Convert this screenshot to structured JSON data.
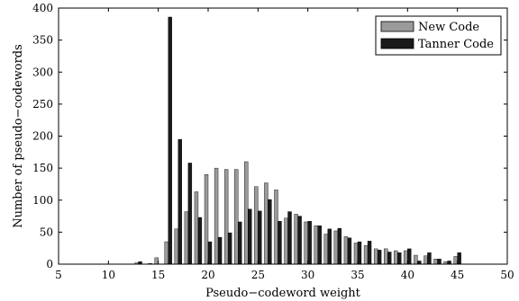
{
  "chart_data": {
    "type": "bar",
    "xlabel": "Pseudo−codeword weight",
    "ylabel": "Number of pseudo−codewords",
    "xlim": [
      5,
      50
    ],
    "ylim": [
      0,
      400
    ],
    "xticks": [
      "5",
      "10",
      "15",
      "20",
      "25",
      "30",
      "35",
      "40",
      "45",
      "50"
    ],
    "yticks": [
      "0",
      "50",
      "100",
      "150",
      "200",
      "250",
      "300",
      "350",
      "400"
    ],
    "grid": false,
    "legend_position": "top-right",
    "x": [
      10,
      11,
      12,
      13,
      14,
      15,
      16,
      17,
      18,
      19,
      20,
      21,
      22,
      23,
      24,
      25,
      26,
      27,
      28,
      29,
      30,
      31,
      32,
      33,
      34,
      35,
      36,
      37,
      38,
      39,
      40,
      41,
      42,
      43,
      44,
      45
    ],
    "series": [
      {
        "name": "New Code",
        "color": "#9a9a9a",
        "values": [
          0,
          0,
          0,
          2,
          0,
          10,
          35,
          55,
          82,
          113,
          140,
          150,
          148,
          148,
          160,
          121,
          127,
          116,
          72,
          78,
          66,
          60,
          47,
          52,
          43,
          33,
          29,
          24,
          24,
          21,
          21,
          14,
          13,
          8,
          4,
          12
        ]
      },
      {
        "name": "Tanner Code",
        "color": "#1a1a1a",
        "values": [
          0,
          0,
          0,
          4,
          1,
          0,
          386,
          195,
          158,
          73,
          35,
          42,
          49,
          66,
          86,
          83,
          101,
          67,
          82,
          75,
          67,
          60,
          55,
          56,
          41,
          35,
          36,
          22,
          19,
          18,
          24,
          5,
          18,
          8,
          5,
          18
        ]
      }
    ]
  }
}
